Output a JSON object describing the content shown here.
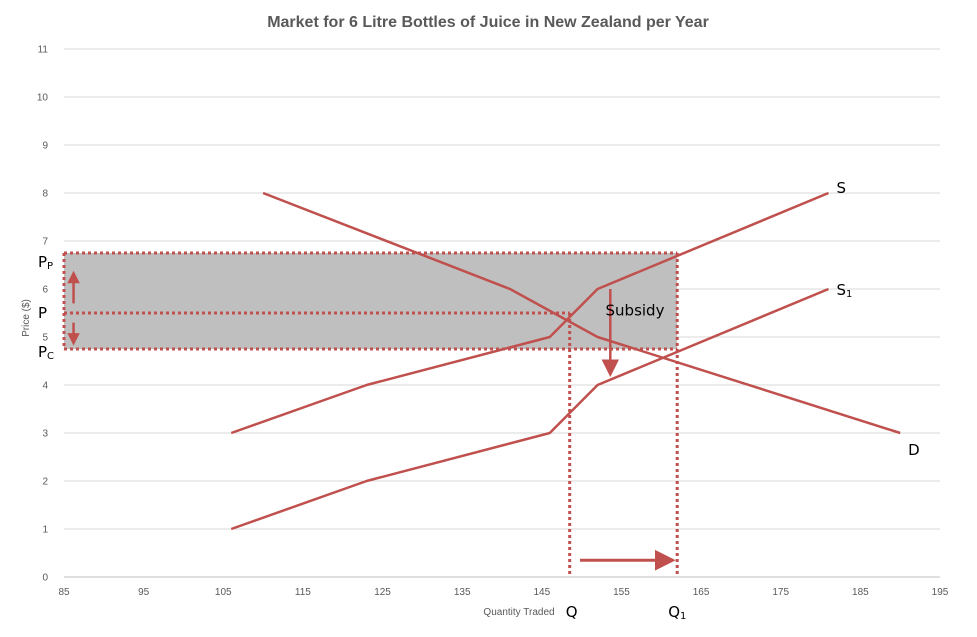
{
  "chart_data": {
    "type": "line",
    "title": "Market for 6 Litre Bottles of Juice in New Zealand per Year",
    "xlabel": "Quantity Traded",
    "ylabel": "Price ($)",
    "xlim": [
      85,
      195
    ],
    "ylim": [
      0,
      11
    ],
    "xticks": [
      85,
      95,
      105,
      115,
      125,
      135,
      145,
      155,
      165,
      175,
      185,
      195
    ],
    "yticks": [
      0,
      1,
      2,
      3,
      4,
      5,
      6,
      7,
      8,
      9,
      10,
      11
    ],
    "grid": true,
    "legend": "none",
    "series": [
      {
        "name": "S",
        "color": "#c0504d",
        "points": [
          [
            106,
            3
          ],
          [
            123,
            4
          ],
          [
            146,
            5
          ],
          [
            152,
            6
          ],
          [
            181,
            8
          ]
        ]
      },
      {
        "name": "S1",
        "color": "#c0504d",
        "points": [
          [
            106,
            1
          ],
          [
            123,
            2
          ],
          [
            146,
            3
          ],
          [
            152,
            4
          ],
          [
            181,
            6
          ]
        ]
      },
      {
        "name": "D",
        "color": "#c0504d",
        "points": [
          [
            110,
            8
          ],
          [
            141,
            6
          ],
          [
            152,
            5
          ],
          [
            190,
            3
          ]
        ]
      }
    ],
    "shaded_region": {
      "x": [
        85,
        162
      ],
      "y": [
        4.75,
        6.75
      ],
      "color": "#bfbfbf"
    },
    "dotted_lines": {
      "pp": 6.75,
      "p": 5.5,
      "pc": 4.75,
      "q": 148.5,
      "q1": 162
    },
    "annotations": {
      "s_label": {
        "main": "S",
        "x": 182,
        "y": 8.1
      },
      "s1_label": {
        "main": "S",
        "sub": "1",
        "x": 182,
        "y": 6.0
      },
      "d_label": {
        "main": "D",
        "x": 191,
        "y": 2.65
      },
      "subsidy_label": {
        "text": "Subsidy",
        "x": 153,
        "y": 5.55
      },
      "pp_label": {
        "main": "P",
        "sub": "P"
      },
      "p_label": {
        "main": "P"
      },
      "pc_label": {
        "main": "P",
        "sub": "C"
      },
      "q_label": {
        "main": "Q"
      },
      "q1_label": {
        "main": "Q",
        "sub": "1"
      }
    }
  }
}
